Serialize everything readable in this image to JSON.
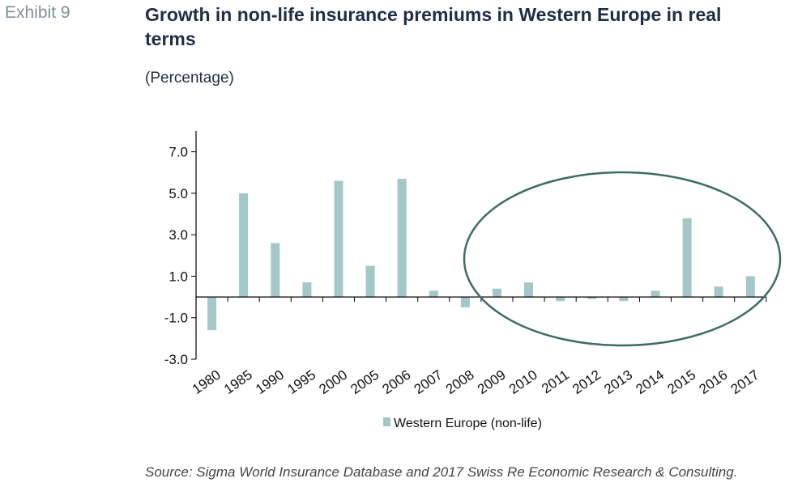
{
  "header": {
    "exhibit": "Exhibit 9",
    "title": "Growth in non-life insurance premiums in Western Europe in real terms",
    "subtitle": "(Percentage)"
  },
  "footer": {
    "source": "Source: Sigma World Insurance Database and 2017 Swiss Re Economic Research & Consulting."
  },
  "colors": {
    "bar": "#a4c7c9",
    "ellipse": "#3d6b68",
    "axis": "#000000"
  },
  "chart_data": {
    "type": "bar",
    "categories": [
      "1980",
      "1985",
      "1990",
      "1995",
      "2000",
      "2005",
      "2006",
      "2007",
      "2008",
      "2009",
      "2010",
      "2011",
      "2012",
      "2013",
      "2014",
      "2015",
      "2016",
      "2017"
    ],
    "series": [
      {
        "name": "Western Europe (non-life)",
        "values": [
          -1.6,
          5.0,
          2.6,
          0.7,
          5.6,
          1.5,
          5.7,
          0.3,
          -0.5,
          0.4,
          0.7,
          -0.2,
          -0.1,
          -0.2,
          0.3,
          3.8,
          0.5,
          1.0
        ]
      }
    ],
    "yticks": [
      -3.0,
      -1.0,
      1.0,
      3.0,
      5.0,
      7.0
    ],
    "ytick_labels": [
      "-3.0",
      "-1.0",
      "1.0",
      "3.0",
      "5.0",
      "7.0"
    ],
    "ylim": [
      -3.0,
      8.0
    ],
    "legend_position": "bottom",
    "annotation": "ellipse highlighting 2009-2017",
    "xlabel": "",
    "ylabel": ""
  }
}
